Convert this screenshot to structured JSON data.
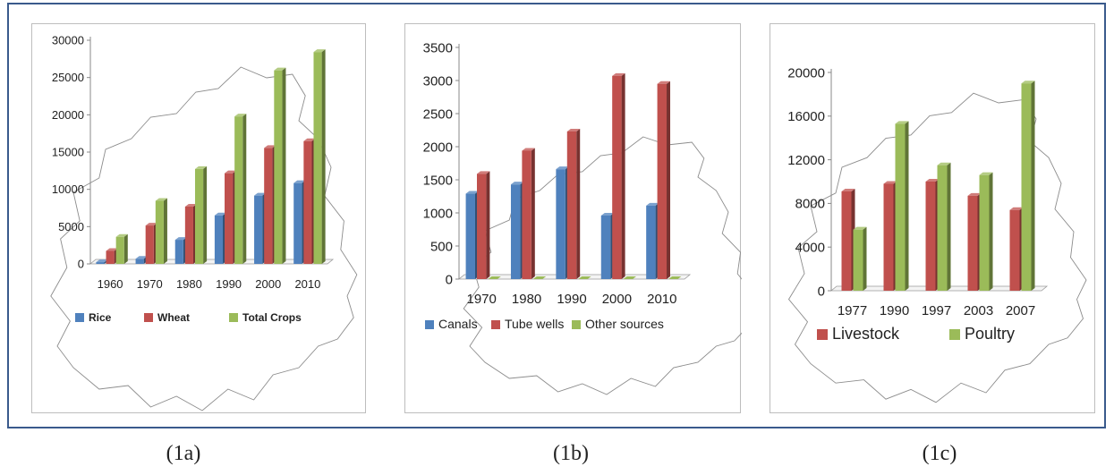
{
  "captions": [
    "(1a)",
    "(1b)",
    "(1c)"
  ],
  "chart_data": [
    {
      "type": "bar",
      "categories": [
        "1960",
        "1970",
        "1980",
        "1990",
        "2000",
        "2010"
      ],
      "series": [
        {
          "name": "Rice",
          "values": [
            230,
            690,
            3230,
            6510,
            9160,
            10840
          ],
          "color": "#4f81bd"
        },
        {
          "name": "Wheat",
          "values": [
            1740,
            5150,
            7680,
            12160,
            15550,
            16470
          ],
          "color": "#c0504d"
        },
        {
          "name": "Total Crops",
          "values": [
            3630,
            8460,
            12730,
            19780,
            25960,
            28420
          ],
          "color": "#9bbb59"
        }
      ],
      "yticks": [
        "0",
        "5000",
        "10000",
        "15000",
        "20000",
        "25000",
        "30000"
      ],
      "ylim": [
        0,
        30000
      ],
      "legend": "bottom",
      "background": "outline map of Punjab"
    },
    {
      "type": "bar",
      "categories": [
        "1970",
        "1980",
        "1990",
        "2000",
        "2010"
      ],
      "series": [
        {
          "name": "Canals",
          "values": [
            1290,
            1430,
            1660,
            960,
            1110
          ],
          "color": "#4f81bd"
        },
        {
          "name": "Tube wells",
          "values": [
            1590,
            1940,
            2230,
            3070,
            2950
          ],
          "color": "#c0504d"
        },
        {
          "name": "Other sources",
          "values": [
            0,
            0,
            0,
            0,
            0
          ],
          "color": "#9bbb59"
        }
      ],
      "yticks": [
        "0",
        "500",
        "1000",
        "1500",
        "2000",
        "2500",
        "3000",
        "3500"
      ],
      "ylim": [
        0,
        3500
      ],
      "legend": "bottom",
      "background": "outline map of Punjab"
    },
    {
      "type": "bar",
      "categories": [
        "1977",
        "1990",
        "1997",
        "2003",
        "2007"
      ],
      "series": [
        {
          "name": "Livestock",
          "values": [
            9100,
            9800,
            10000,
            8700,
            7400
          ],
          "color": "#c0504d"
        },
        {
          "name": "Poultry",
          "values": [
            5600,
            15300,
            11500,
            10600,
            19000
          ],
          "color": "#9bbb59"
        }
      ],
      "yticks": [
        "0",
        "4000",
        "8000",
        "12000",
        "16000",
        "20000"
      ],
      "ylim": [
        0,
        20000
      ],
      "legend": "bottom",
      "background": "outline map of Punjab"
    }
  ]
}
